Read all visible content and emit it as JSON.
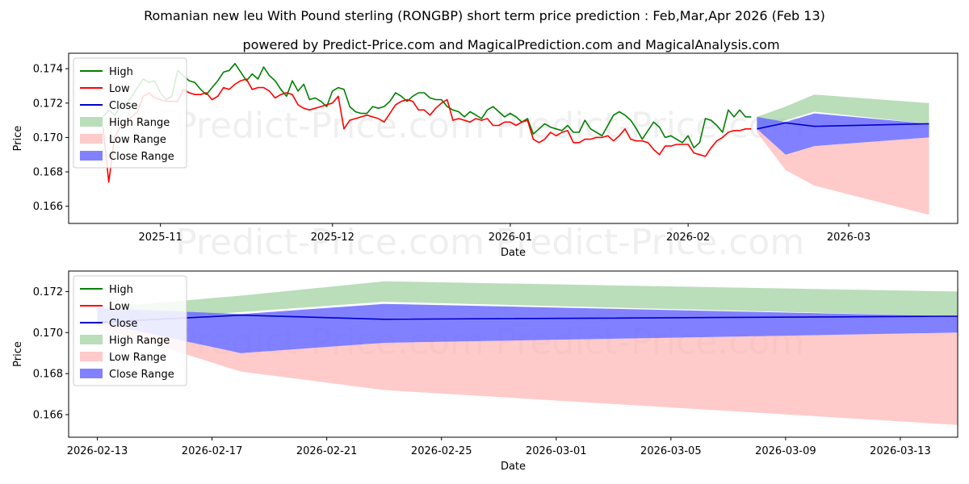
{
  "page": {
    "title": "Romanian new leu With Pound sterling (RONGBP) short term price prediction : Feb,Mar,Apr 2026 (Feb 13)",
    "subtitle": "powered by Predict-Price.com and MagicalPrediction.com and MagicalAnalysis.com",
    "watermark": "Predict-Price.com"
  },
  "colors": {
    "high": "#008000",
    "low": "#ff0000",
    "close": "#0000cc",
    "high_range": "#9ccf9c",
    "low_range": "#ffb3b3",
    "close_range": "#6b6bff"
  },
  "chart_data": [
    {
      "type": "line",
      "xlabel": "Date",
      "ylabel": "Price",
      "x_start": "2025-10-22",
      "xlim": [
        "2025-10-16",
        "2026-03-20"
      ],
      "ylim": [
        0.165,
        0.1749
      ],
      "xticks": [
        {
          "date": "2025-11-01",
          "label": "2025-11"
        },
        {
          "date": "2025-12-01",
          "label": "2025-12"
        },
        {
          "date": "2026-01-01",
          "label": "2026-01"
        },
        {
          "date": "2026-02-01",
          "label": "2026-02"
        },
        {
          "date": "2026-03-01",
          "label": "2026-03"
        }
      ],
      "yticks": [
        0.166,
        0.168,
        0.17,
        0.172,
        0.174
      ],
      "legend": {
        "position": "top-left",
        "entries": [
          "High",
          "Low",
          "Close",
          "High Range",
          "Low Range",
          "Close Range"
        ]
      },
      "series": [
        {
          "name": "High",
          "values": [
            0.1712,
            0.1716,
            0.1713,
            0.1718,
            0.1719,
            0.1724,
            0.1729,
            0.1734,
            0.1732,
            0.1733,
            0.1726,
            0.1722,
            0.1724,
            0.1739,
            0.1736,
            0.1733,
            0.1732,
            0.1728,
            0.1725,
            0.1729,
            0.1733,
            0.1738,
            0.1739,
            0.1743,
            0.1738,
            0.1733,
            0.1737,
            0.1734,
            0.1741,
            0.1736,
            0.1733,
            0.1728,
            0.1724,
            0.1733,
            0.1727,
            0.1731,
            0.1722,
            0.1723,
            0.1721,
            0.1718,
            0.1727,
            0.1729,
            0.1728,
            0.1718,
            0.1715,
            0.1714,
            0.1714,
            0.1718,
            0.1717,
            0.1718,
            0.1721,
            0.1726,
            0.1724,
            0.1721,
            0.1724,
            0.1726,
            0.1726,
            0.1723,
            0.1722,
            0.1722,
            0.1718,
            0.1716,
            0.1715,
            0.1712,
            0.1715,
            0.1713,
            0.1711,
            0.1716,
            0.1718,
            0.1715,
            0.1712,
            0.1714,
            0.1712,
            0.1709,
            0.1711,
            0.1702,
            0.1705,
            0.1708,
            0.1706,
            0.1705,
            0.1704,
            0.1707,
            0.1703,
            0.1703,
            0.171,
            0.1705,
            0.1703,
            0.1701,
            0.1707,
            0.1713,
            0.1715,
            0.1713,
            0.171,
            0.1705,
            0.1699,
            0.1704,
            0.1709,
            0.1706,
            0.17,
            0.1701,
            0.1699,
            0.1697,
            0.1701,
            0.1694,
            0.1697,
            0.1711,
            0.171,
            0.1707,
            0.1703,
            0.1716,
            0.1712,
            0.1716,
            0.1712,
            0.1712
          ]
        },
        {
          "name": "Low",
          "values": [
            0.1706,
            0.1674,
            0.17,
            0.1706,
            0.1709,
            0.1712,
            0.1715,
            0.1724,
            0.1726,
            0.1723,
            0.1722,
            0.1721,
            0.1721,
            0.1721,
            0.1728,
            0.1726,
            0.1725,
            0.1725,
            0.1726,
            0.1722,
            0.1724,
            0.1729,
            0.1728,
            0.1731,
            0.1733,
            0.1734,
            0.1728,
            0.1729,
            0.1729,
            0.1727,
            0.1723,
            0.1725,
            0.1726,
            0.1725,
            0.1719,
            0.1717,
            0.1716,
            0.1717,
            0.1718,
            0.1719,
            0.172,
            0.1724,
            0.1705,
            0.171,
            0.1711,
            0.1712,
            0.1713,
            0.1712,
            0.1711,
            0.1709,
            0.1714,
            0.1719,
            0.1721,
            0.1722,
            0.1721,
            0.1716,
            0.1716,
            0.1713,
            0.1717,
            0.172,
            0.1722,
            0.171,
            0.1711,
            0.171,
            0.1709,
            0.1711,
            0.171,
            0.1711,
            0.1707,
            0.1707,
            0.1709,
            0.1709,
            0.1707,
            0.1709,
            0.171,
            0.1699,
            0.1697,
            0.1699,
            0.1703,
            0.1701,
            0.1703,
            0.1704,
            0.1697,
            0.1697,
            0.1699,
            0.1699,
            0.17,
            0.17,
            0.1701,
            0.1698,
            0.1701,
            0.1705,
            0.1699,
            0.1698,
            0.1698,
            0.1697,
            0.1693,
            0.169,
            0.1695,
            0.1695,
            0.1696,
            0.1696,
            0.1696,
            0.1691,
            0.169,
            0.1689,
            0.1694,
            0.1698,
            0.17,
            0.1703,
            0.1704,
            0.1704,
            0.1705,
            0.1705
          ]
        },
        {
          "name": "Close",
          "dates": [
            "2026-02-13",
            "2026-02-18",
            "2026-02-23",
            "2026-03-15"
          ],
          "values": [
            0.1705,
            0.17085,
            0.17065,
            0.1708
          ]
        }
      ],
      "ranges": [
        {
          "name": "High Range",
          "dates": [
            "2026-02-13",
            "2026-02-18",
            "2026-02-23",
            "2026-03-15"
          ],
          "upper": [
            0.1712,
            0.1718,
            0.1725,
            0.172
          ],
          "lower": [
            0.1705,
            0.171,
            0.1715,
            0.1708
          ]
        },
        {
          "name": "Low Range",
          "dates": [
            "2026-02-13",
            "2026-02-18",
            "2026-02-23",
            "2026-03-15"
          ],
          "upper": [
            0.1705,
            0.169,
            0.1695,
            0.17
          ],
          "lower": [
            0.1703,
            0.1681,
            0.1672,
            0.1655
          ]
        },
        {
          "name": "Close Range",
          "dates": [
            "2026-02-13",
            "2026-02-18",
            "2026-02-23",
            "2026-03-15"
          ],
          "upper": [
            0.1712,
            0.1709,
            0.1714,
            0.1708
          ],
          "lower": [
            0.1705,
            0.169,
            0.1695,
            0.17
          ]
        }
      ]
    },
    {
      "type": "line",
      "xlabel": "Date",
      "ylabel": "Price",
      "xlim": [
        "2026-02-12",
        "2026-03-15"
      ],
      "ylim": [
        0.1649,
        0.173
      ],
      "xticks": [
        {
          "date": "2026-02-13",
          "label": "2026-02-13"
        },
        {
          "date": "2026-02-17",
          "label": "2026-02-17"
        },
        {
          "date": "2026-02-21",
          "label": "2026-02-21"
        },
        {
          "date": "2026-02-25",
          "label": "2026-02-25"
        },
        {
          "date": "2026-03-01",
          "label": "2026-03-01"
        },
        {
          "date": "2026-03-05",
          "label": "2026-03-05"
        },
        {
          "date": "2026-03-09",
          "label": "2026-03-09"
        },
        {
          "date": "2026-03-13",
          "label": "2026-03-13"
        }
      ],
      "yticks": [
        0.166,
        0.168,
        0.17,
        0.172
      ],
      "legend": {
        "position": "top-left",
        "entries": [
          "High",
          "Low",
          "Close",
          "High Range",
          "Low Range",
          "Close Range"
        ]
      },
      "series": [
        {
          "name": "Close",
          "dates": [
            "2026-02-13",
            "2026-02-18",
            "2026-02-23",
            "2026-03-15"
          ],
          "values": [
            0.1705,
            0.17085,
            0.17065,
            0.1708
          ]
        }
      ],
      "ranges": [
        {
          "name": "High Range",
          "dates": [
            "2026-02-13",
            "2026-02-18",
            "2026-02-23",
            "2026-03-15"
          ],
          "upper": [
            0.1712,
            0.1718,
            0.1725,
            0.172
          ],
          "lower": [
            0.1705,
            0.171,
            0.1715,
            0.1708
          ]
        },
        {
          "name": "Low Range",
          "dates": [
            "2026-02-13",
            "2026-02-18",
            "2026-02-23",
            "2026-03-15"
          ],
          "upper": [
            0.1705,
            0.169,
            0.1695,
            0.17
          ],
          "lower": [
            0.1703,
            0.1681,
            0.1672,
            0.1655
          ]
        },
        {
          "name": "Close Range",
          "dates": [
            "2026-02-13",
            "2026-02-18",
            "2026-02-23",
            "2026-03-15"
          ],
          "upper": [
            0.1712,
            0.1709,
            0.1714,
            0.1708
          ],
          "lower": [
            0.1705,
            0.169,
            0.1695,
            0.17
          ]
        }
      ]
    }
  ]
}
